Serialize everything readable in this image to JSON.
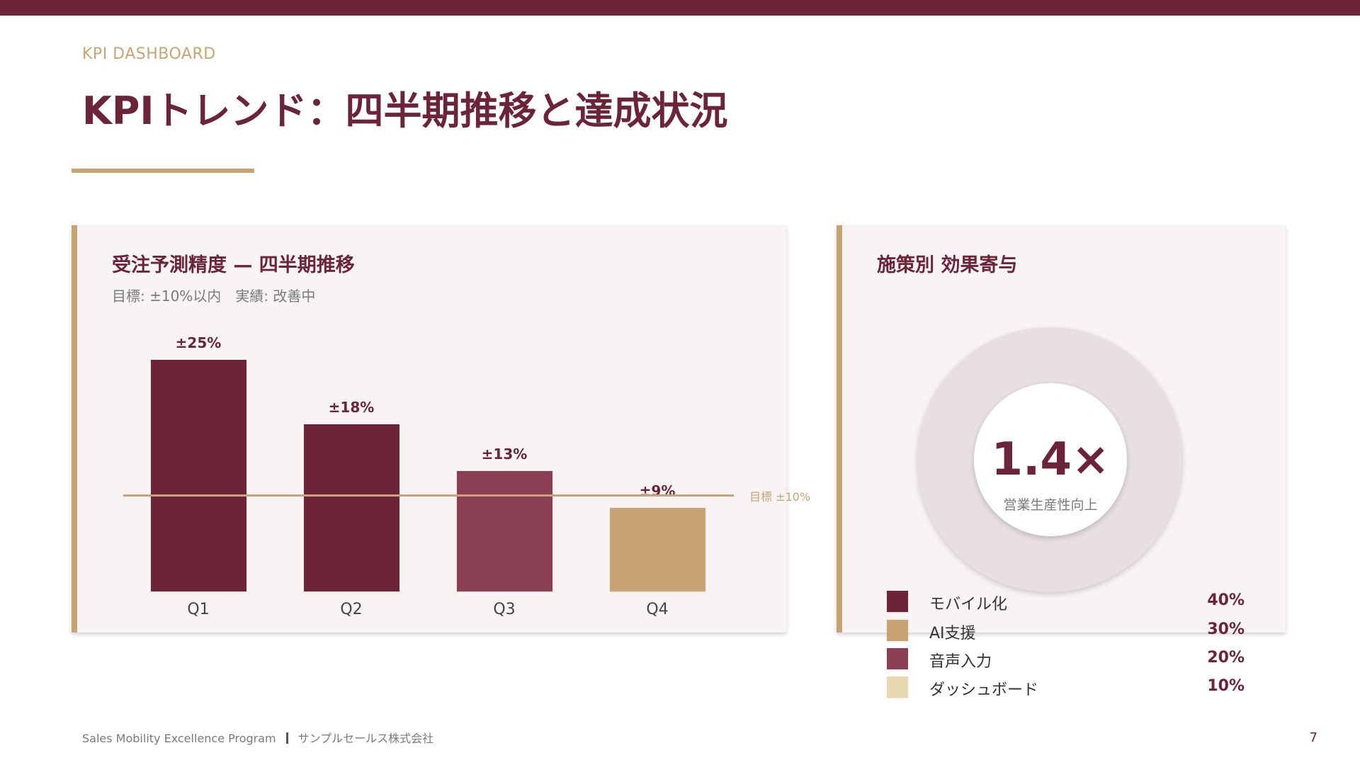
{
  "slide": {
    "eyebrow": "KPI DASHBOARD",
    "title": "KPIトレンド：四半期推移と達成状況",
    "page_number": "7"
  },
  "left_card": {
    "title": "受注予測精度 — 四半期推移",
    "subtitle": "目標: ±10%以内　実績: 改善中",
    "target_label": "目標 ±10%"
  },
  "right_card": {
    "title": "施策別 効果寄与",
    "donut_value": "1.4×",
    "donut_caption": "営業生産性向上"
  },
  "chart_data": [
    {
      "type": "bar",
      "categories": [
        "Q1",
        "Q2",
        "Q3",
        "Q4"
      ],
      "values": [
        25,
        18,
        13,
        9
      ],
      "value_labels": [
        "±25%",
        "±18%",
        "±13%",
        "±9%"
      ],
      "bar_colors": [
        "#6b2438",
        "#6b2438",
        "#8a4052",
        "#c8a472"
      ],
      "target_value": 10,
      "target_label": "目標 ±10%"
    },
    {
      "type": "pie",
      "labels": [
        "モバイル化",
        "AI支援",
        "音声入力",
        "ダッシュボード"
      ],
      "values": [
        40,
        30,
        20,
        10
      ],
      "value_labels": [
        "40%",
        "30%",
        "20%",
        "10%"
      ],
      "colors": [
        "#6b2438",
        "#c8a472",
        "#8a4052",
        "#e8d8b0"
      ]
    }
  ],
  "footer": {
    "program": "Sales Mobility Excellence Program",
    "company": "サンプルセールス株式会社"
  },
  "colors": {
    "brand": "#6b2438",
    "accent": "#c8a472",
    "card_background": "#f8f4f5"
  }
}
